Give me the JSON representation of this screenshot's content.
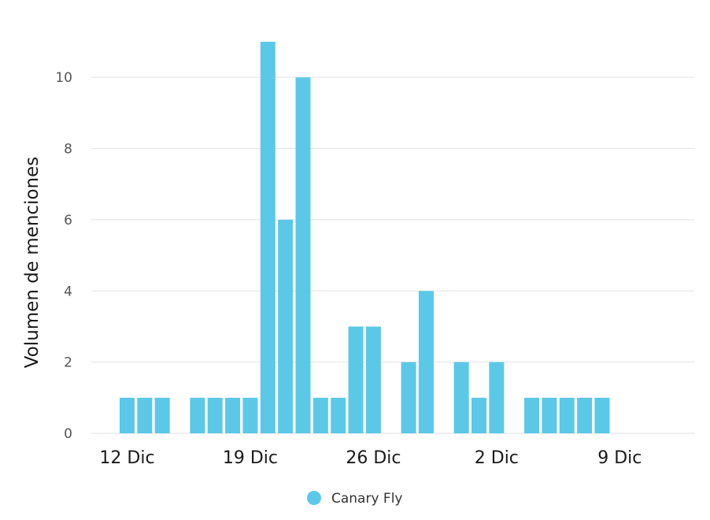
{
  "chart_data": {
    "type": "bar",
    "title": "",
    "xlabel": "",
    "ylabel": "Volumen de menciones",
    "ylim": [
      0,
      11
    ],
    "yticks": [
      0,
      2,
      4,
      6,
      8,
      10
    ],
    "grid": true,
    "legend_position": "bottom",
    "x_axis": {
      "start": "12 Dic",
      "end": "13 Ene",
      "tick_labels": [
        {
          "label": "12 Dic",
          "day": 0
        },
        {
          "label": "19 Dic",
          "day": 7
        },
        {
          "label": "26 Dic",
          "day": 14
        },
        {
          "label": "2 Dic",
          "day": 21
        },
        {
          "label": "9 Dic",
          "day": 28
        }
      ]
    },
    "series": [
      {
        "name": "Canary Fly",
        "color": "#5bc8e8",
        "points": [
          {
            "day": 0,
            "value": 1
          },
          {
            "day": 1,
            "value": 1
          },
          {
            "day": 2,
            "value": 1
          },
          {
            "day": 4,
            "value": 1
          },
          {
            "day": 5,
            "value": 1
          },
          {
            "day": 6,
            "value": 1
          },
          {
            "day": 7,
            "value": 1
          },
          {
            "day": 8,
            "value": 11
          },
          {
            "day": 9,
            "value": 6
          },
          {
            "day": 10,
            "value": 10
          },
          {
            "day": 11,
            "value": 1
          },
          {
            "day": 12,
            "value": 1
          },
          {
            "day": 13,
            "value": 3
          },
          {
            "day": 14,
            "value": 3
          },
          {
            "day": 16,
            "value": 2
          },
          {
            "day": 17,
            "value": 4
          },
          {
            "day": 19,
            "value": 2
          },
          {
            "day": 20,
            "value": 1
          },
          {
            "day": 21,
            "value": 2
          },
          {
            "day": 23,
            "value": 1
          },
          {
            "day": 24,
            "value": 1
          },
          {
            "day": 25,
            "value": 1
          },
          {
            "day": 26,
            "value": 1
          },
          {
            "day": 27,
            "value": 1
          }
        ]
      }
    ]
  }
}
